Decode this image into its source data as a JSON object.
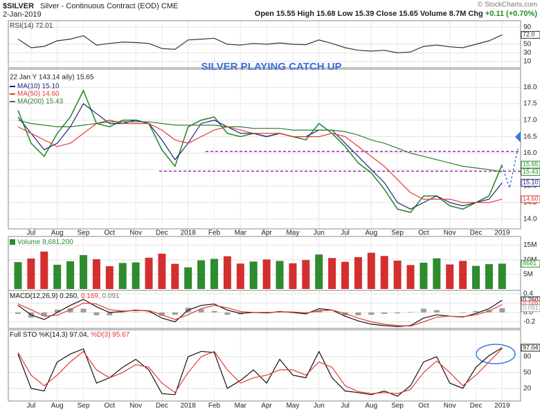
{
  "header": {
    "symbol": "$SILVER",
    "description": "Silver - Continuous Contract (EOD) CME",
    "date": "2-Jan-2019",
    "quote": "Open 15.55 High 15.68 Low 15.39 Close 15.65 Volume 8.7M Chg ",
    "change": "+0.11 (+0.70%)",
    "credit": "© StockCharts.com"
  },
  "chart_data": [
    {
      "type": "line",
      "legend": "inline",
      "ylim": [
        0,
        100
      ],
      "yticks": [
        10,
        30,
        50,
        90
      ],
      "series": [
        {
          "name": "RSI(14) 72.01",
          "color": "#333333",
          "values": [
            62,
            42,
            45,
            58,
            62,
            70,
            48,
            52,
            55,
            54,
            52,
            40,
            38,
            60,
            62,
            64,
            50,
            48,
            52,
            50,
            53,
            50,
            49,
            60,
            52,
            42,
            36,
            34,
            36,
            30,
            32,
            45,
            48,
            44,
            42,
            50,
            58,
            72.01
          ]
        }
      ],
      "tags": [
        {
          "value": 72.01,
          "label": "72.0",
          "color": "#333333"
        }
      ]
    },
    {
      "type": "line",
      "legend": "stacked",
      "annotation": "SILVER PLAYING CATCH UP",
      "categories": [
        null,
        "Jul",
        null,
        "Aug",
        null,
        "Sep",
        null,
        "Oct",
        null,
        "Nov",
        null,
        "Dec",
        null,
        "2018",
        null,
        "Feb",
        null,
        "Mar",
        null,
        "Apr",
        null,
        "May",
        null,
        "Jun",
        null,
        "Jul",
        null,
        "Aug",
        null,
        "Sep",
        null,
        "Oct",
        null,
        "Nov",
        null,
        "Dec",
        null,
        "2019"
      ],
      "ylim": [
        13.7,
        18.55
      ],
      "yticks": [
        {
          "value": 14,
          "label": "14.0"
        },
        14.5,
        {
          "value": 15,
          "label": "15.0"
        },
        15.5,
        {
          "value": 16,
          "label": "16.0"
        },
        16.5,
        {
          "value": 17,
          "label": "17.0"
        },
        17.5,
        {
          "value": 18,
          "label": "18.0"
        }
      ],
      "levels": [
        16.05,
        15.45
      ],
      "level_color": "#9c27b0",
      "series": [
        {
          "name": "22 Jan Y 143.14 aily) 15.65",
          "color": "#2b8a2b",
          "values": [
            17.3,
            16.3,
            15.9,
            16.6,
            17.1,
            17.9,
            16.9,
            16.8,
            17.0,
            17.0,
            16.9,
            16.1,
            15.6,
            16.8,
            17.0,
            17.1,
            16.6,
            16.5,
            16.6,
            16.5,
            16.6,
            16.5,
            16.4,
            16.9,
            16.6,
            16.2,
            15.7,
            15.4,
            14.9,
            14.3,
            14.2,
            14.7,
            14.7,
            14.4,
            14.3,
            14.5,
            14.7,
            15.65
          ]
        },
        {
          "name": "MA(10) 15.10",
          "color": "#1a237e",
          "values": [
            17.1,
            16.6,
            16.1,
            16.3,
            16.8,
            17.5,
            17.2,
            16.9,
            16.9,
            17.0,
            16.9,
            16.4,
            15.8,
            16.3,
            16.9,
            17.0,
            16.8,
            16.6,
            16.6,
            16.5,
            16.6,
            16.5,
            16.5,
            16.7,
            16.7,
            16.3,
            15.9,
            15.5,
            15.1,
            14.5,
            14.3,
            14.5,
            14.7,
            14.5,
            14.4,
            14.5,
            14.6,
            15.1
          ]
        },
        {
          "name": "MA(50) 14.60",
          "color": "#e53935",
          "values": [
            16.8,
            16.6,
            16.4,
            16.2,
            16.3,
            16.6,
            16.9,
            17.0,
            16.9,
            16.9,
            16.9,
            16.7,
            16.4,
            16.3,
            16.5,
            16.7,
            16.8,
            16.7,
            16.6,
            16.6,
            16.6,
            16.5,
            16.5,
            16.5,
            16.6,
            16.5,
            16.2,
            15.9,
            15.6,
            15.2,
            14.8,
            14.6,
            14.6,
            14.6,
            14.5,
            14.5,
            14.5,
            14.6
          ]
        },
        {
          "name": "MA(200) 15.43",
          "color": "#2e7d32",
          "values": [
            17.0,
            16.9,
            16.85,
            16.8,
            16.8,
            16.85,
            16.9,
            16.95,
            16.95,
            16.95,
            16.95,
            16.9,
            16.85,
            16.85,
            16.85,
            16.85,
            16.8,
            16.8,
            16.75,
            16.75,
            16.75,
            16.7,
            16.7,
            16.7,
            16.7,
            16.65,
            16.55,
            16.4,
            16.3,
            16.15,
            16.0,
            15.9,
            15.8,
            15.7,
            15.6,
            15.55,
            15.5,
            15.43
          ]
        }
      ],
      "tags": [
        {
          "value": 15.65,
          "label": "15.65",
          "color": "#2b8a2b"
        },
        {
          "value": 15.43,
          "label": "15.43",
          "color": "#2e7d32"
        },
        {
          "value": 15.1,
          "label": "15.10",
          "color": "#1a237e"
        },
        {
          "value": 14.6,
          "label": "14.60",
          "color": "#e53935"
        }
      ]
    },
    {
      "type": "bar",
      "legend": "inline",
      "ylim": [
        0,
        17500000
      ],
      "yticks": [
        {
          "value": 5000000,
          "label": "5M"
        },
        {
          "value": 10000000,
          "label": "10M"
        },
        {
          "value": 15000000,
          "label": "15M"
        }
      ],
      "up_color": "#2e8b2e",
      "down_color": "#d32f2f",
      "series": [
        {
          "name": "Volume 8,681,200",
          "color": "#2e8b2e",
          "values": [
            9200000,
            10400000,
            12800000,
            8300000,
            9500000,
            11600000,
            10200000,
            7800000,
            8900000,
            9100000,
            10700000,
            12100000,
            8600000,
            7400000,
            9800000,
            10300000,
            11200000,
            8700000,
            9400000,
            10100000,
            9600000,
            8800000,
            9900000,
            11800000,
            10600000,
            9300000,
            10900000,
            12400000,
            11300000,
            9700000,
            8200000,
            9000000,
            10500000,
            8400000,
            9600000,
            7900000,
            8500000,
            8681200
          ]
        }
      ],
      "tags": [
        {
          "value": 8681200,
          "label": "8681",
          "color": "#2e8b2e"
        }
      ]
    },
    {
      "type": "macd",
      "legend": "inline",
      "ylim": [
        -0.34,
        0.47
      ],
      "yticks": [
        -0.2,
        {
          "value": 0,
          "label": "0.0"
        },
        0.2,
        0.4
      ],
      "series": [
        {
          "name": "MACD(12,26,9) 0.260, ",
          "color": "#111111",
          "style": "line",
          "values": [
            0.15,
            -0.05,
            -0.15,
            0.0,
            0.15,
            0.28,
            0.12,
            0.0,
            0.02,
            0.05,
            0.03,
            -0.12,
            -0.2,
            0.05,
            0.15,
            0.18,
            0.05,
            -0.02,
            0.0,
            -0.01,
            0.02,
            0.0,
            -0.03,
            0.08,
            0.05,
            -0.08,
            -0.18,
            -0.25,
            -0.28,
            -0.3,
            -0.28,
            -0.12,
            -0.05,
            -0.08,
            -0.1,
            -0.02,
            0.08,
            0.26
          ]
        },
        {
          "name": "0.169, ",
          "color": "#e53935",
          "style": "line",
          "values": [
            0.18,
            0.06,
            -0.08,
            -0.06,
            0.06,
            0.2,
            0.18,
            0.06,
            0.03,
            0.04,
            0.04,
            -0.05,
            -0.15,
            -0.05,
            0.08,
            0.15,
            0.1,
            0.02,
            0.0,
            0.0,
            0.01,
            0.01,
            -0.01,
            0.03,
            0.05,
            -0.02,
            -0.12,
            -0.2,
            -0.25,
            -0.28,
            -0.29,
            -0.2,
            -0.1,
            -0.08,
            -0.09,
            -0.05,
            0.03,
            0.169
          ]
        },
        {
          "name": "0.091",
          "color": "#9e9e9e",
          "style": "bar",
          "values": [
            -0.03,
            -0.11,
            -0.07,
            0.06,
            0.09,
            0.08,
            -0.06,
            -0.06,
            -0.01,
            0.01,
            -0.01,
            -0.07,
            -0.05,
            0.1,
            0.07,
            0.03,
            -0.05,
            -0.04,
            0.0,
            -0.01,
            0.01,
            -0.01,
            -0.02,
            0.05,
            0.0,
            -0.06,
            -0.06,
            -0.05,
            -0.03,
            -0.02,
            0.01,
            0.08,
            0.05,
            0.0,
            -0.01,
            0.03,
            0.05,
            0.091
          ]
        }
      ],
      "tags": [
        {
          "value": 0.26,
          "label": "0.260",
          "color": "#111111"
        },
        {
          "value": 0.169,
          "label": "0.169",
          "color": "#e53935"
        },
        {
          "value": 0.091,
          "label": "0.091",
          "color": "#9e9e9e"
        }
      ]
    },
    {
      "type": "line",
      "legend": "inline",
      "categories": [
        null,
        "Jul",
        null,
        "Aug",
        null,
        "Sep",
        null,
        "Oct",
        null,
        "Nov",
        null,
        "Dec",
        null,
        "2018",
        null,
        "Feb",
        null,
        "Mar",
        null,
        "Apr",
        null,
        "May",
        null,
        "Jun",
        null,
        "Jul",
        null,
        "Aug",
        null,
        "Sep",
        null,
        "Oct",
        null,
        "Nov",
        null,
        "Dec",
        null,
        "2019"
      ],
      "ylim": [
        -4,
        131
      ],
      "yticks": [
        20,
        50,
        80
      ],
      "series": [
        {
          "name": "Full STO %K(14,3) 97.04, ",
          "color": "#111111",
          "values": [
            85,
            20,
            15,
            70,
            85,
            95,
            30,
            40,
            60,
            75,
            55,
            10,
            8,
            80,
            90,
            88,
            20,
            35,
            55,
            30,
            75,
            45,
            40,
            90,
            40,
            15,
            12,
            8,
            15,
            5,
            25,
            70,
            80,
            30,
            20,
            60,
            82,
            97.04
          ]
        },
        {
          "name": "%D(3) 95.67",
          "color": "#e53935",
          "values": [
            88,
            45,
            25,
            45,
            70,
            90,
            55,
            40,
            50,
            65,
            60,
            30,
            12,
            50,
            80,
            90,
            55,
            30,
            40,
            45,
            55,
            55,
            45,
            70,
            60,
            25,
            14,
            10,
            12,
            10,
            18,
            50,
            72,
            50,
            25,
            45,
            70,
            95.67
          ]
        }
      ],
      "tags": [
        {
          "value": 97.04,
          "label": "97.04",
          "color": "#111111"
        }
      ]
    }
  ]
}
